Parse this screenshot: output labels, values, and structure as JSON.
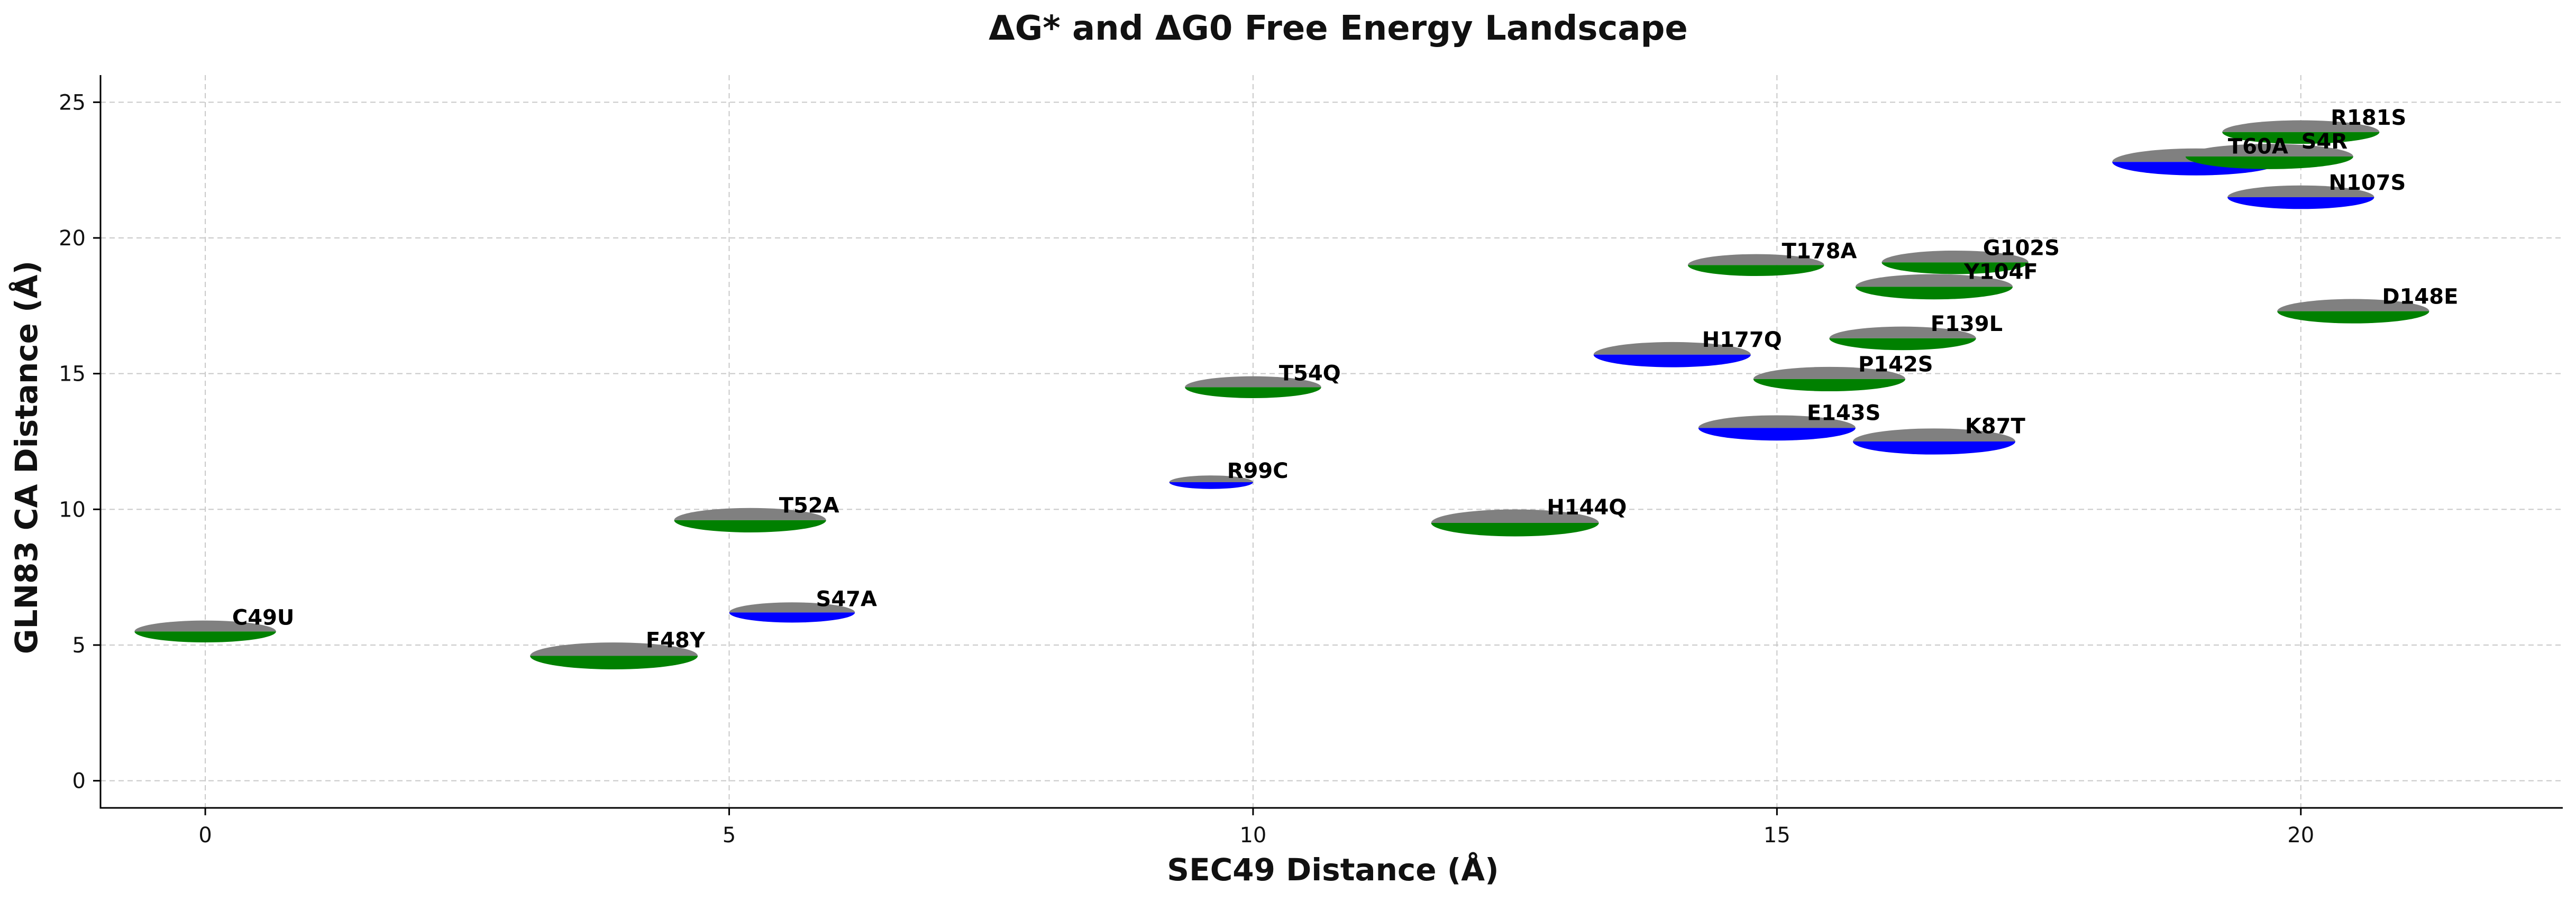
{
  "chart_data": {
    "type": "scatter",
    "title": "ΔG* and ΔG0 Free Energy Landscape",
    "xlabel": "SEC49 Distance (Å)",
    "ylabel": "GLN83 CA Distance (Å)",
    "xlim": [
      -1,
      22.5
    ],
    "ylim": [
      -1,
      26
    ],
    "xticks": [
      0,
      5,
      10,
      15,
      20
    ],
    "yticks": [
      0,
      5,
      10,
      15,
      20,
      25
    ],
    "grid": true,
    "colors": {
      "top": "#808080",
      "green": "#008000",
      "blue": "#0000ff"
    },
    "points": [
      {
        "label": "C49U",
        "x": 0.0,
        "y": 5.5,
        "width": 1.35,
        "height": 1.3,
        "color": "green"
      },
      {
        "label": "F48Y",
        "x": 3.9,
        "y": 4.6,
        "width": 1.6,
        "height": 1.6,
        "color": "green"
      },
      {
        "label": "T52A",
        "x": 5.2,
        "y": 9.6,
        "width": 1.45,
        "height": 1.45,
        "color": "green"
      },
      {
        "label": "S47A",
        "x": 5.6,
        "y": 6.2,
        "width": 1.2,
        "height": 1.2,
        "color": "blue"
      },
      {
        "label": "R99C",
        "x": 9.6,
        "y": 11.0,
        "width": 0.8,
        "height": 0.8,
        "color": "blue"
      },
      {
        "label": "T54Q",
        "x": 10.0,
        "y": 14.5,
        "width": 1.3,
        "height": 1.3,
        "color": "green"
      },
      {
        "label": "H144Q",
        "x": 12.5,
        "y": 9.5,
        "width": 1.6,
        "height": 1.6,
        "color": "green"
      },
      {
        "label": "H177Q",
        "x": 14.0,
        "y": 15.7,
        "width": 1.5,
        "height": 1.5,
        "color": "blue"
      },
      {
        "label": "T178A",
        "x": 14.8,
        "y": 19.0,
        "width": 1.3,
        "height": 1.3,
        "color": "green"
      },
      {
        "label": "E143S",
        "x": 15.0,
        "y": 13.0,
        "width": 1.5,
        "height": 1.5,
        "color": "blue"
      },
      {
        "label": "P142S",
        "x": 15.5,
        "y": 14.8,
        "width": 1.45,
        "height": 1.45,
        "color": "green"
      },
      {
        "label": "F139L",
        "x": 16.2,
        "y": 16.3,
        "width": 1.4,
        "height": 1.4,
        "color": "green"
      },
      {
        "label": "K87T",
        "x": 16.5,
        "y": 12.5,
        "width": 1.55,
        "height": 1.55,
        "color": "blue"
      },
      {
        "label": "Y104F",
        "x": 16.5,
        "y": 18.2,
        "width": 1.5,
        "height": 1.5,
        "color": "green"
      },
      {
        "label": "G102S",
        "x": 16.7,
        "y": 19.1,
        "width": 1.4,
        "height": 1.4,
        "color": "green"
      },
      {
        "label": "T60A",
        "x": 19.0,
        "y": 22.8,
        "width": 1.6,
        "height": 1.6,
        "color": "blue"
      },
      {
        "label": "S4R",
        "x": 19.7,
        "y": 23.0,
        "width": 1.6,
        "height": 1.5,
        "color": "green"
      },
      {
        "label": "R181S",
        "x": 20.0,
        "y": 23.9,
        "width": 1.5,
        "height": 1.4,
        "color": "green"
      },
      {
        "label": "N107S",
        "x": 20.0,
        "y": 21.5,
        "width": 1.4,
        "height": 1.4,
        "color": "blue"
      },
      {
        "label": "D148E",
        "x": 20.5,
        "y": 17.3,
        "width": 1.45,
        "height": 1.45,
        "color": "green"
      }
    ]
  }
}
